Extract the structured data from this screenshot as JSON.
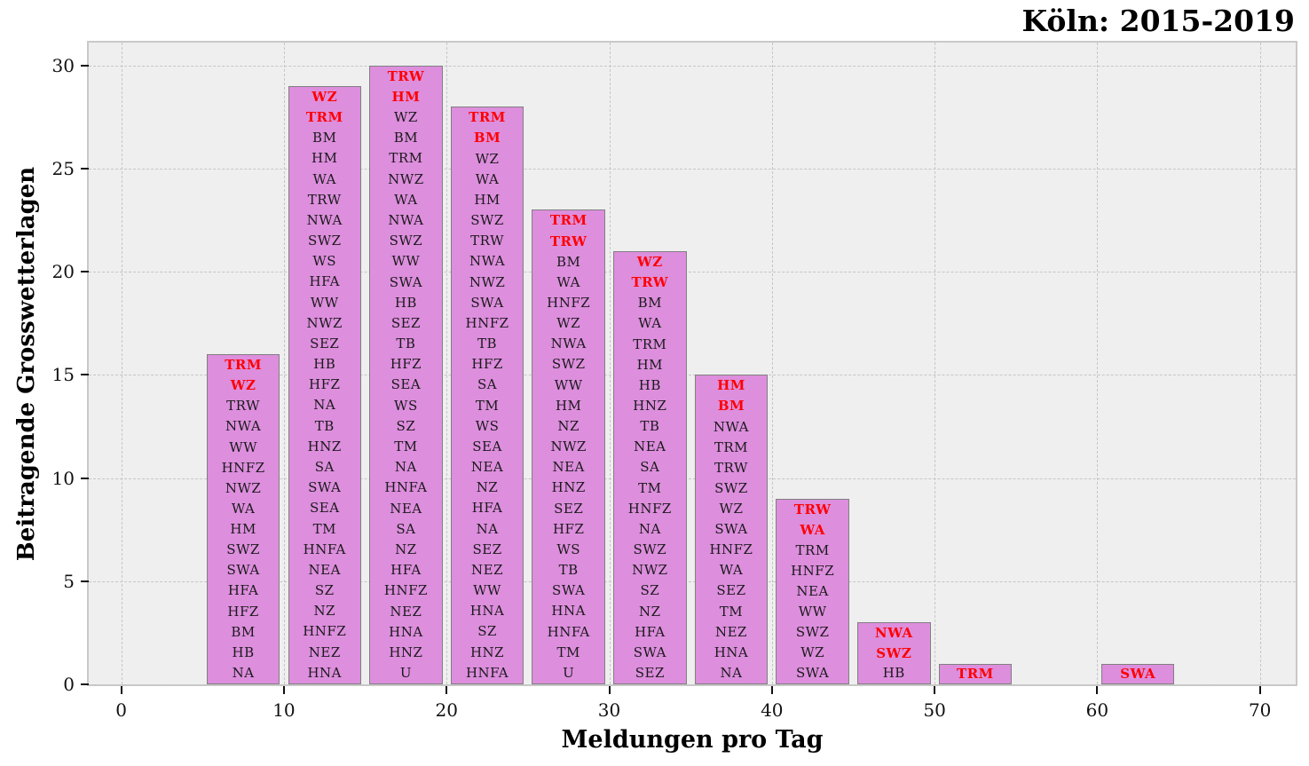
{
  "title": "Köln: 2015-2019",
  "chart_data": {
    "type": "bar",
    "title": "Köln: 2015-2019",
    "xlabel": "Meldungen pro Tag",
    "ylabel": "Beitragende Grosswetterlagen",
    "xlim": [
      -2.0,
      72.2
    ],
    "ylim": [
      0,
      31.1
    ],
    "x_ticks": [
      0,
      10,
      20,
      30,
      40,
      50,
      60,
      70
    ],
    "y_ticks": [
      0,
      5,
      10,
      15,
      20,
      25,
      30
    ],
    "grid": "dashed, both axes, on ticks",
    "legend": "none",
    "bar_width": 4.5,
    "colors": {
      "bar_fill": "#dd8edd",
      "bar_edge": "#808080",
      "plot_bg": "#efefef",
      "grid": "#c6c6c6",
      "label": "#1a1a1a",
      "highlight": "#ff0000"
    },
    "bins": [
      {
        "x_center": 7.5,
        "count": 16,
        "red_count": 2,
        "labels": [
          "TRM",
          "WZ",
          "TRW",
          "NWA",
          "WW",
          "HNFZ",
          "NWZ",
          "WA",
          "HM",
          "SWZ",
          "SWA",
          "HFA",
          "HFZ",
          "BM",
          "HB",
          "NA"
        ]
      },
      {
        "x_center": 12.5,
        "count": 29,
        "red_count": 2,
        "labels": [
          "WZ",
          "TRM",
          "BM",
          "HM",
          "WA",
          "TRW",
          "NWA",
          "SWZ",
          "WS",
          "HFA",
          "WW",
          "NWZ",
          "SEZ",
          "HB",
          "HFZ",
          "NA",
          "TB",
          "HNZ",
          "SA",
          "SWA",
          "SEA",
          "TM",
          "HNFA",
          "NEA",
          "SZ",
          "NZ",
          "HNFZ",
          "NEZ",
          "HNA"
        ]
      },
      {
        "x_center": 17.5,
        "count": 30,
        "red_count": 2,
        "labels": [
          "TRW",
          "HM",
          "WZ",
          "BM",
          "TRM",
          "NWZ",
          "WA",
          "NWA",
          "SWZ",
          "WW",
          "SWA",
          "HB",
          "SEZ",
          "TB",
          "HFZ",
          "SEA",
          "WS",
          "SZ",
          "TM",
          "NA",
          "HNFA",
          "NEA",
          "SA",
          "NZ",
          "HFA",
          "HNFZ",
          "NEZ",
          "HNA",
          "HNZ",
          "U"
        ]
      },
      {
        "x_center": 22.5,
        "count": 28,
        "red_count": 2,
        "labels": [
          "TRM",
          "BM",
          "WZ",
          "WA",
          "HM",
          "SWZ",
          "TRW",
          "NWA",
          "NWZ",
          "SWA",
          "HNFZ",
          "TB",
          "HFZ",
          "SA",
          "TM",
          "WS",
          "SEA",
          "NEA",
          "NZ",
          "HFA",
          "NA",
          "SEZ",
          "NEZ",
          "WW",
          "HNA",
          "SZ",
          "HNZ",
          "HNFA"
        ]
      },
      {
        "x_center": 27.5,
        "count": 23,
        "red_count": 2,
        "labels": [
          "TRM",
          "TRW",
          "BM",
          "WA",
          "HNFZ",
          "WZ",
          "NWA",
          "SWZ",
          "WW",
          "HM",
          "NZ",
          "NWZ",
          "NEA",
          "HNZ",
          "SEZ",
          "HFZ",
          "WS",
          "TB",
          "SWA",
          "HNA",
          "HNFA",
          "TM",
          "U"
        ]
      },
      {
        "x_center": 32.5,
        "count": 21,
        "red_count": 2,
        "labels": [
          "WZ",
          "TRW",
          "BM",
          "WA",
          "TRM",
          "HM",
          "HB",
          "HNZ",
          "TB",
          "NEA",
          "SA",
          "TM",
          "HNFZ",
          "NA",
          "SWZ",
          "NWZ",
          "SZ",
          "NZ",
          "HFA",
          "SWA",
          "SEZ"
        ]
      },
      {
        "x_center": 37.5,
        "count": 15,
        "red_count": 2,
        "labels": [
          "HM",
          "BM",
          "NWA",
          "TRM",
          "TRW",
          "SWZ",
          "WZ",
          "SWA",
          "HNFZ",
          "WA",
          "SEZ",
          "TM",
          "NEZ",
          "HNA",
          "NA"
        ]
      },
      {
        "x_center": 42.5,
        "count": 9,
        "red_count": 2,
        "labels": [
          "TRW",
          "WA",
          "TRM",
          "HNFZ",
          "NEA",
          "WW",
          "SWZ",
          "WZ",
          "SWA"
        ]
      },
      {
        "x_center": 47.5,
        "count": 3,
        "red_count": 2,
        "labels": [
          "NWA",
          "SWZ",
          "HB"
        ]
      },
      {
        "x_center": 52.5,
        "count": 1,
        "red_count": 1,
        "labels": [
          "TRM"
        ]
      },
      {
        "x_center": 62.5,
        "count": 1,
        "red_count": 1,
        "labels": [
          "SWA"
        ]
      }
    ]
  }
}
